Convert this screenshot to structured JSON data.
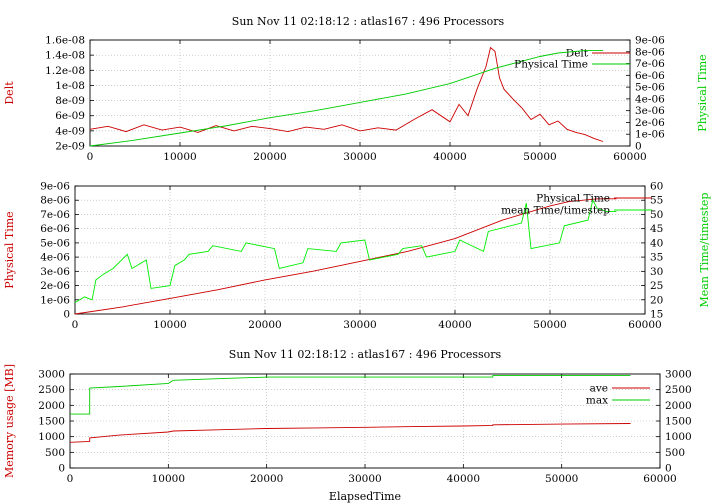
{
  "chart_data": [
    {
      "type": "line",
      "title": "Sun Nov 11 02:18:12 : atlas167 : 496 Processors",
      "ylabel": "Delt",
      "y2label": "Physical Time",
      "xlim": [
        0,
        60000
      ],
      "ylim": [
        2e-09,
        1.6e-08
      ],
      "y2lim": [
        0,
        9e-06
      ],
      "x_ticks": [
        "0",
        "10000",
        "20000",
        "30000",
        "40000",
        "50000",
        "60000"
      ],
      "y_ticks": [
        "2e-09",
        "4e-09",
        "6e-09",
        "8e-09",
        "1e-08",
        "1.2e-08",
        "1.4e-08",
        "1.6e-08"
      ],
      "y2_ticks": [
        "0",
        "1e-06",
        "2e-06",
        "3e-06",
        "4e-06",
        "5e-06",
        "6e-06",
        "7e-06",
        "8e-06",
        "9e-06"
      ],
      "grid": true,
      "legend": "top-right",
      "series": [
        {
          "name": "Delt",
          "axis": "y1",
          "color": "#cc0000",
          "x": [
            0,
            2000,
            4000,
            6000,
            8000,
            10000,
            12000,
            14000,
            16000,
            18000,
            20000,
            22000,
            24000,
            26000,
            28000,
            30000,
            32000,
            34000,
            36000,
            38000,
            40000,
            41000,
            42000,
            43000,
            44000,
            44500,
            45000,
            45500,
            46000,
            47000,
            48000,
            49000,
            50000,
            51000,
            52000,
            53000,
            54000,
            55000,
            56000,
            57000
          ],
          "y": [
            4.2e-09,
            4.6e-09,
            3.9e-09,
            4.8e-09,
            4.1e-09,
            4.5e-09,
            3.8e-09,
            4.7e-09,
            4e-09,
            4.6e-09,
            4.3e-09,
            3.9e-09,
            4.5e-09,
            4.2e-09,
            4.8e-09,
            4e-09,
            4.4e-09,
            4.1e-09,
            5.5e-09,
            6.8e-09,
            5.2e-09,
            7.5e-09,
            6e-09,
            9.5e-09,
            1.25e-08,
            1.5e-08,
            1.45e-08,
            1.1e-08,
            9.5e-09,
            8.2e-09,
            7e-09,
            5.5e-09,
            6.2e-09,
            4.8e-09,
            5.3e-09,
            4.2e-09,
            3.8e-09,
            3.5e-09,
            3e-09,
            2.6e-09
          ]
        },
        {
          "name": "Physical Time",
          "axis": "y2",
          "color": "#00cc00",
          "x": [
            0,
            5000,
            10000,
            15000,
            20000,
            25000,
            30000,
            35000,
            40000,
            45000,
            48000,
            50000,
            52000,
            55000,
            57000
          ],
          "y": [
            0,
            5e-07,
            1.1e-06,
            1.7e-06,
            2.4e-06,
            3e-06,
            3.7e-06,
            4.4e-06,
            5.3e-06,
            6.6e-06,
            7.2e-06,
            7.6e-06,
            7.9e-06,
            8.1e-06,
            8.1e-06
          ]
        }
      ]
    },
    {
      "type": "line",
      "title": "",
      "ylabel": "Physical Time",
      "y2label": "Mean Time/timestep",
      "xlim": [
        0,
        60000
      ],
      "ylim": [
        0,
        9e-06
      ],
      "y2lim": [
        15,
        60
      ],
      "x_ticks": [
        "0",
        "10000",
        "20000",
        "30000",
        "40000",
        "50000",
        "60000"
      ],
      "y_ticks": [
        "0",
        "1e-06",
        "2e-06",
        "3e-06",
        "4e-06",
        "5e-06",
        "6e-06",
        "7e-06",
        "8e-06",
        "9e-06"
      ],
      "y2_ticks": [
        "15",
        "20",
        "25",
        "30",
        "35",
        "40",
        "45",
        "50",
        "55",
        "60"
      ],
      "grid": true,
      "legend": "top-right",
      "series": [
        {
          "name": "Physical Time",
          "axis": "y1",
          "color": "#cc0000",
          "x": [
            0,
            5000,
            10000,
            15000,
            20000,
            25000,
            30000,
            35000,
            40000,
            45000,
            48000,
            50000,
            52000,
            55000,
            57000
          ],
          "y": [
            0,
            5e-07,
            1.1e-06,
            1.7e-06,
            2.4e-06,
            3e-06,
            3.7e-06,
            4.4e-06,
            5.3e-06,
            6.6e-06,
            7.2e-06,
            7.6e-06,
            7.9e-06,
            8.1e-06,
            8.1e-06
          ]
        },
        {
          "name": "mean Time/timestep",
          "axis": "y2",
          "color": "#00ee00",
          "x": [
            0,
            1000,
            1800,
            2200,
            3000,
            4000,
            5500,
            6000,
            7500,
            8000,
            10000,
            10500,
            11500,
            12000,
            14000,
            14500,
            17500,
            18000,
            21000,
            21500,
            24000,
            24500,
            27500,
            28000,
            30500,
            31000,
            34000,
            34500,
            36500,
            37000,
            40000,
            40500,
            43000,
            43500,
            47000,
            47500,
            48000,
            51000,
            51500,
            54000,
            54500,
            55000,
            56000,
            57000
          ],
          "y": [
            19,
            21,
            20,
            27,
            29,
            31,
            36,
            31,
            34,
            24,
            25,
            32,
            34,
            36,
            37,
            39,
            37,
            40,
            38,
            31,
            33,
            38,
            37,
            40,
            41,
            34,
            36,
            38,
            39,
            35,
            37,
            41,
            37,
            44,
            47,
            54,
            38,
            40,
            46,
            48,
            55,
            52,
            51,
            51
          ]
        }
      ]
    },
    {
      "type": "line",
      "title": "Sun Nov 11 02:18:12 : atlas167 : 496 Processors",
      "xlabel": "ElapsedTime",
      "ylabel": "Memory usage [MB]",
      "xlim": [
        0,
        60000
      ],
      "ylim": [
        0,
        3000
      ],
      "y2lim": [
        0,
        3000
      ],
      "x_ticks": [
        "0",
        "10000",
        "20000",
        "30000",
        "40000",
        "50000",
        "60000"
      ],
      "y_ticks": [
        "0",
        "500",
        "1000",
        "1500",
        "2000",
        "2500",
        "3000"
      ],
      "y2_ticks": [
        "0",
        "500",
        "1000",
        "1500",
        "2000",
        "2500",
        "3000"
      ],
      "grid": true,
      "legend": "top-right",
      "series": [
        {
          "name": "ave",
          "axis": "y1",
          "color": "#cc0000",
          "x": [
            0,
            2000,
            2001,
            5000,
            10000,
            10500,
            15000,
            20000,
            25000,
            30000,
            35000,
            40000,
            43000,
            43001,
            50000,
            57000
          ],
          "y": [
            820,
            850,
            960,
            1050,
            1150,
            1180,
            1220,
            1260,
            1280,
            1300,
            1320,
            1340,
            1360,
            1380,
            1400,
            1420
          ]
        },
        {
          "name": "max",
          "axis": "y1",
          "color": "#00cc00",
          "x": [
            0,
            2000,
            2001,
            5000,
            10000,
            10500,
            15000,
            20000,
            43000,
            43001,
            57000
          ],
          "y": [
            1720,
            1720,
            2550,
            2600,
            2700,
            2800,
            2850,
            2900,
            2900,
            2950,
            2950
          ]
        }
      ]
    }
  ]
}
